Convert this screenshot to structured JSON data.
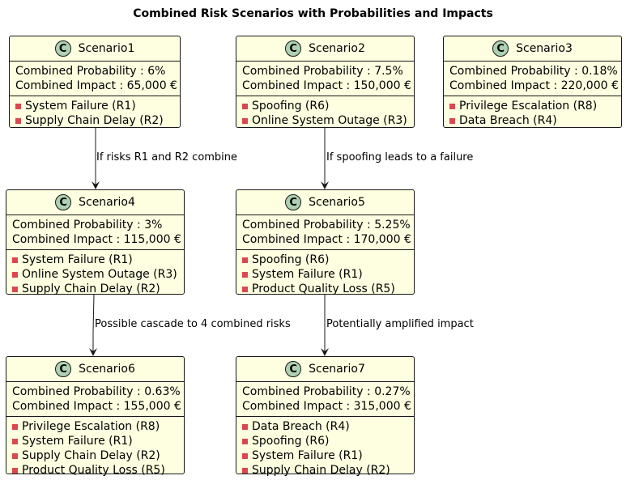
{
  "title": "Combined Risk Scenarios with Probabilities and Impacts",
  "icon_letter": "C",
  "colors": {
    "node_fill": "#FEFFE0",
    "icon_fill": "#ADD1B2",
    "bullet": "#D9484E",
    "stroke": "#181818"
  },
  "nodes": [
    {
      "name": "Scenario1",
      "probability": "Combined Probability : 6%",
      "impact": "Combined Impact : 65,000 €",
      "risks": [
        "System Failure (R1)",
        "Supply Chain Delay (R2)"
      ]
    },
    {
      "name": "Scenario2",
      "probability": "Combined Probability : 7.5%",
      "impact": "Combined Impact : 150,000 €",
      "risks": [
        "Spoofing (R6)",
        "Online System Outage (R3)"
      ]
    },
    {
      "name": "Scenario3",
      "probability": "Combined Probability : 0.18%",
      "impact": "Combined Impact : 220,000 €",
      "risks": [
        "Privilege Escalation (R8)",
        "Data Breach (R4)"
      ]
    },
    {
      "name": "Scenario4",
      "probability": "Combined Probability : 3%",
      "impact": "Combined Impact : 115,000 €",
      "risks": [
        "System Failure (R1)",
        "Online System Outage (R3)",
        "Supply Chain Delay (R2)"
      ]
    },
    {
      "name": "Scenario5",
      "probability": "Combined Probability : 5.25%",
      "impact": "Combined Impact : 170,000 €",
      "risks": [
        "Spoofing (R6)",
        "System Failure (R1)",
        "Product Quality Loss (R5)"
      ]
    },
    {
      "name": "Scenario6",
      "probability": "Combined Probability : 0.63%",
      "impact": "Combined Impact : 155,000 €",
      "risks": [
        "Privilege Escalation (R8)",
        "System Failure (R1)",
        "Supply Chain Delay (R2)",
        "Product Quality Loss (R5)"
      ]
    },
    {
      "name": "Scenario7",
      "probability": "Combined Probability : 0.27%",
      "impact": "Combined Impact : 315,000 €",
      "risks": [
        "Data Breach (R4)",
        "Spoofing (R6)",
        "System Failure (R1)",
        "Supply Chain Delay (R2)"
      ]
    }
  ],
  "edges": [
    {
      "from": "Scenario1",
      "to": "Scenario4",
      "label": "If risks R1 and R2 combine"
    },
    {
      "from": "Scenario2",
      "to": "Scenario5",
      "label": "If spoofing leads to a failure"
    },
    {
      "from": "Scenario4",
      "to": "Scenario6",
      "label": "Possible cascade to 4 combined risks"
    },
    {
      "from": "Scenario5",
      "to": "Scenario7",
      "label": "Potentially amplified impact"
    }
  ]
}
